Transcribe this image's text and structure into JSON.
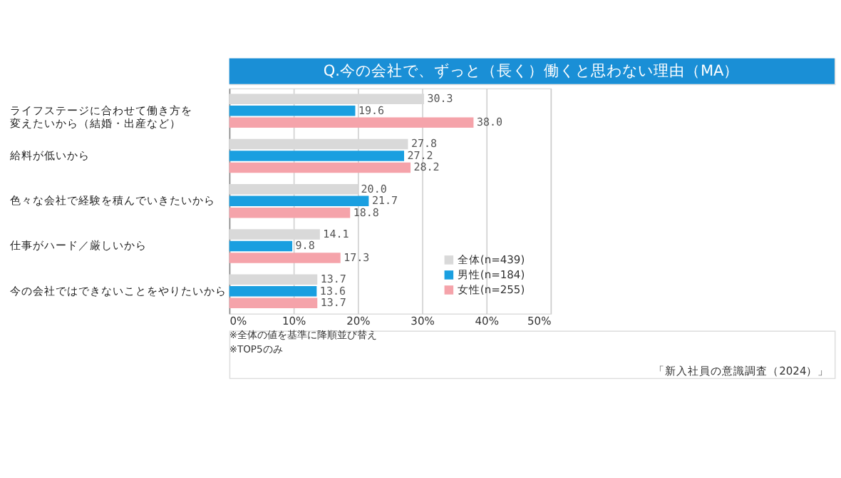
{
  "chart_data": {
    "type": "bar",
    "orientation": "horizontal",
    "title": "Q.今の会社で、ずっと（長く）働くと思わない理由（MA）",
    "categories": [
      "ライフステージに合わせて働き方を変えたいから（結婚・出産など）",
      "給料が低いから",
      "色々な会社で経験を積んでいきたいから",
      "仕事がハード／厳しいから",
      "今の会社ではできないことをやりたいから"
    ],
    "series": [
      {
        "name": "全体(n=439)",
        "color": "#d9d9d9",
        "values": [
          30.3,
          27.8,
          20.0,
          14.1,
          13.7
        ],
        "value_labels": [
          "30.3",
          "27.8",
          "20.0",
          "14.1",
          "13.7"
        ]
      },
      {
        "name": "男性(n=184)",
        "color": "#1a9fe0",
        "values": [
          19.6,
          27.2,
          21.7,
          9.8,
          13.6
        ],
        "value_labels": [
          "19.6",
          "27.2",
          "21.7",
          "9.8",
          "13.6"
        ]
      },
      {
        "name": "女性(n=255)",
        "color": "#f5a3aa",
        "values": [
          38.0,
          28.2,
          18.8,
          17.3,
          13.7
        ],
        "value_labels": [
          "38.0",
          "28.2",
          "18.8",
          "17.3",
          "13.7"
        ]
      }
    ],
    "xlim": [
      0,
      50
    ],
    "xticks": [
      {
        "value": 0,
        "label": "0%"
      },
      {
        "value": 10,
        "label": "10%"
      },
      {
        "value": 20,
        "label": "20%"
      },
      {
        "value": 30,
        "label": "30%"
      },
      {
        "value": 40,
        "label": "40%"
      },
      {
        "value": 50,
        "label": "50%"
      }
    ],
    "grid": "x",
    "legend": "bottom right",
    "annotations": [
      "※全体の値を基準に降順並び替え",
      "※TOP5のみ",
      "「新入社員の意識調査（2024）」"
    ]
  }
}
